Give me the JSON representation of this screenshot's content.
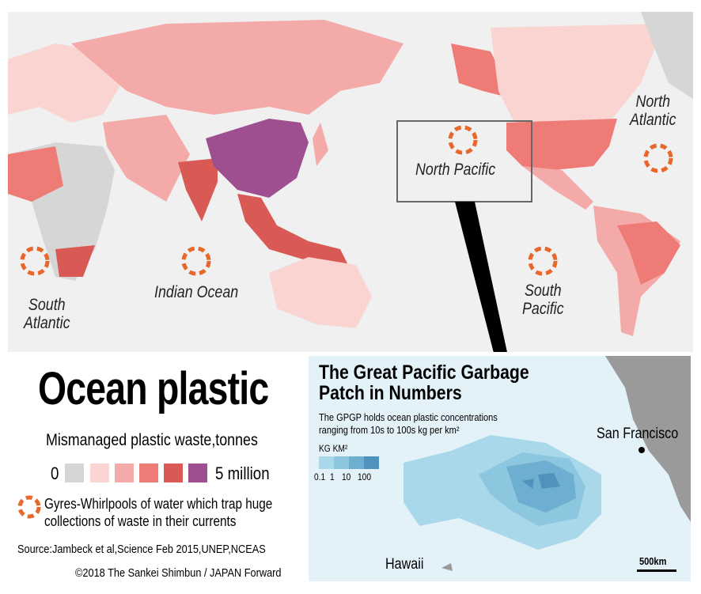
{
  "title": "Ocean plastic",
  "legend": {
    "title": "Mismanaged plastic waste,tonnes",
    "min_label": "0",
    "max_label": "5 million",
    "colors": [
      "#d6d6d6",
      "#f9d4d1",
      "#f4aaa8",
      "#ef7b76",
      "#d95a55",
      "#9e4f90"
    ]
  },
  "gyre_note": {
    "icon": "dashed-orange-circle-icon",
    "line1": "Gyres-Whirlpools of water which trap huge",
    "line2": "collections of waste in their currents",
    "color": "#e8672a"
  },
  "source": "Source:Jambeck et al,Science Feb 2015,UNEP,NCEAS",
  "copyright": "©2018 The Sankei Shimbun / JAPAN Forward",
  "gyres": [
    {
      "name": "North Pacific",
      "line1": "North Pacific",
      "line2": ""
    },
    {
      "name": "North Atlantic",
      "line1": "North",
      "line2": "Atlantic"
    },
    {
      "name": "South Atlantic",
      "line1": "South",
      "line2": "Atlantic"
    },
    {
      "name": "Indian Ocean",
      "line1": "Indian Ocean",
      "line2": ""
    },
    {
      "name": "South Pacific",
      "line1": "South",
      "line2": "Pacific"
    }
  ],
  "inset": {
    "title1": "The Great Pacific Garbage",
    "title2": "Patch in Numbers",
    "desc1": "The GPGP holds ocean plastic concentrations",
    "desc2": "ranging from 10s to 100s kg per km²",
    "scale_title": "KG  KM²",
    "scale_labels": [
      "0.1",
      "1",
      "10",
      "100"
    ],
    "scale_colors": [
      "#a9d8ea",
      "#8cc6df",
      "#6eaed0",
      "#4f93bd"
    ],
    "city": "San Francisco",
    "island": "Hawaii",
    "scalebar": "500km"
  }
}
